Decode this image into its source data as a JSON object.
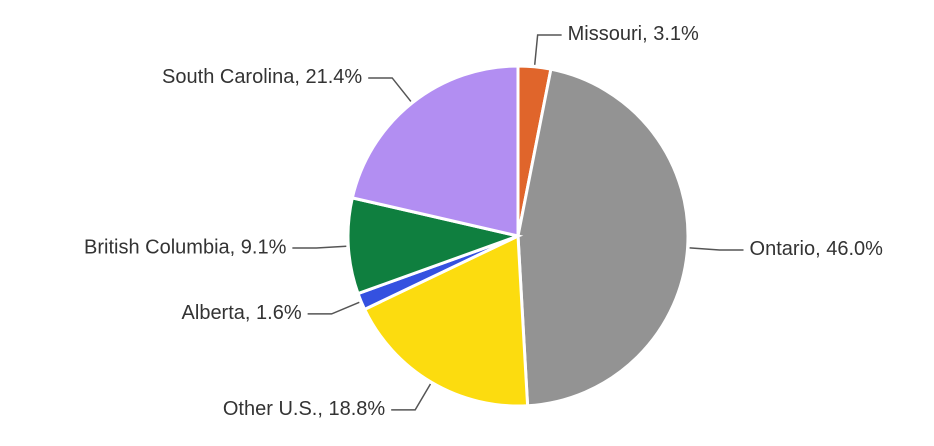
{
  "chart_data": {
    "type": "pie",
    "values": [
      3.1,
      46.0,
      18.8,
      1.6,
      9.1,
      21.4
    ],
    "value_labels": [
      "Missouri, 3.1%",
      "Ontario, 46.0%",
      "Other U.S., 18.8%",
      "Alberta, 1.6%",
      "British Columbia, 9.1%",
      "South Carolina, 21.4%"
    ],
    "colors": [
      "#e0652b",
      "#939393",
      "#fcdc0f",
      "#3451e0",
      "#0f7f3f",
      "#b28ef2"
    ]
  }
}
